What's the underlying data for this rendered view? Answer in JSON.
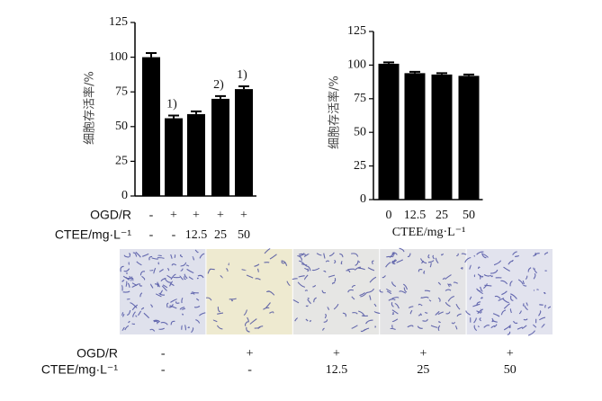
{
  "chart_data": [
    {
      "type": "bar",
      "y_label": "细胞存活率/%",
      "ylim": [
        0,
        125
      ],
      "yticks": [
        0,
        25,
        50,
        75,
        100,
        125
      ],
      "color": "#000000",
      "values": [
        100,
        56,
        59,
        70,
        77
      ],
      "errors": [
        3,
        2,
        2,
        2,
        2
      ],
      "value_annotations": [
        null,
        "1)",
        null,
        "2)",
        "1)"
      ],
      "category_rows": [
        {
          "label": "OGD/R",
          "values": [
            "-",
            "+",
            "+",
            "+",
            "+"
          ]
        },
        {
          "label": "CTEE/mg·L⁻¹",
          "values": [
            "-",
            "-",
            "12.5",
            "25",
            "50"
          ]
        }
      ]
    },
    {
      "type": "bar",
      "y_label": "细胞存活率/%",
      "x_label": "CTEE/mg·L⁻¹",
      "ylim": [
        0,
        125
      ],
      "yticks": [
        0,
        25,
        50,
        75,
        100,
        125
      ],
      "color": "#000000",
      "categories": [
        "0",
        "12.5",
        "25",
        "50"
      ],
      "values": [
        101,
        94,
        93,
        92
      ],
      "errors": [
        1,
        1,
        1,
        1
      ]
    }
  ],
  "image_panel": {
    "rows": [
      {
        "label": "OGD/R",
        "values": [
          "-",
          "+",
          "+",
          "+",
          "+"
        ]
      },
      {
        "label": "CTEE/mg·L⁻¹",
        "values": [
          "-",
          "-",
          "12.5",
          "25",
          "50"
        ]
      }
    ]
  }
}
